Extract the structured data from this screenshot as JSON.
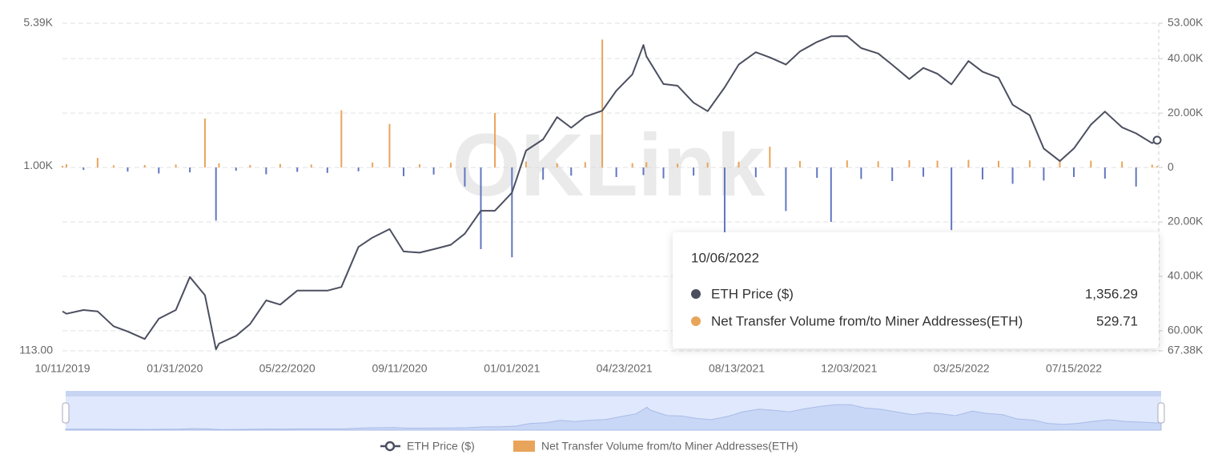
{
  "chart_data": {
    "type": "line-bar",
    "watermark": "OKLink",
    "xlim": [
      "10/11/2019",
      "10/06/2022"
    ],
    "xticks": [
      "10/11/2019",
      "01/31/2020",
      "05/22/2020",
      "09/11/2020",
      "01/01/2021",
      "04/23/2021",
      "08/13/2021",
      "12/03/2021",
      "03/25/2022",
      "07/15/2022"
    ],
    "yscale": "log",
    "ylim": [
      113,
      5390
    ],
    "yticks": [
      {
        "value": 113,
        "label": "113.00"
      },
      {
        "value": 1000,
        "label": "1.00K"
      },
      {
        "value": 5390,
        "label": "5.39K"
      }
    ],
    "y2lim": [
      -67380,
      53000
    ],
    "y2ticks": [
      {
        "value": 53000,
        "label": "53.00K"
      },
      {
        "value": 40000,
        "label": "40.00K"
      },
      {
        "value": 20000,
        "label": "20.00K"
      },
      0,
      {
        "value": -20000,
        "label": "20.00K"
      },
      {
        "value": -40000,
        "label": "40.00K"
      },
      {
        "value": -60000,
        "label": "60.00K"
      },
      {
        "value": -67380,
        "label": "67.38K"
      }
    ],
    "grid": true,
    "x": [
      "10/11/2019",
      "10/15/2019",
      "11/01/2019",
      "11/15/2019",
      "12/01/2019",
      "12/15/2019",
      "01/01/2020",
      "01/15/2020",
      "02/01/2020",
      "02/15/2020",
      "03/01/2020",
      "03/12/2020",
      "03/15/2020",
      "04/01/2020",
      "04/15/2020",
      "05/01/2020",
      "05/15/2020",
      "06/01/2020",
      "06/15/2020",
      "07/01/2020",
      "07/15/2020",
      "08/01/2020",
      "08/15/2020",
      "09/01/2020",
      "09/15/2020",
      "10/01/2020",
      "10/15/2020",
      "11/01/2020",
      "11/15/2020",
      "12/01/2020",
      "12/15/2020",
      "01/01/2021",
      "01/15/2021",
      "02/01/2021",
      "02/15/2021",
      "03/01/2021",
      "03/15/2021",
      "04/01/2021",
      "04/15/2021",
      "05/01/2021",
      "05/12/2021",
      "05/15/2021",
      "06/01/2021",
      "06/15/2021",
      "07/01/2021",
      "07/15/2021",
      "08/01/2021",
      "08/15/2021",
      "09/01/2021",
      "09/15/2021",
      "10/01/2021",
      "10/15/2021",
      "11/01/2021",
      "11/15/2021",
      "12/01/2021",
      "12/15/2021",
      "01/01/2022",
      "01/15/2022",
      "02/01/2022",
      "02/15/2022",
      "03/01/2022",
      "03/15/2022",
      "04/01/2022",
      "04/15/2022",
      "05/01/2022",
      "05/15/2022",
      "06/01/2022",
      "06/15/2022",
      "07/01/2022",
      "07/15/2022",
      "08/01/2022",
      "08/15/2022",
      "09/01/2022",
      "09/15/2022",
      "10/01/2022",
      "10/06/2022"
    ],
    "series": [
      {
        "name": "ETH Price ($)",
        "kind": "line",
        "axis": "y",
        "color": "#4b4f60",
        "values": [
          180,
          175,
          183,
          180,
          151,
          142,
          130,
          165,
          183,
          270,
          218,
          115,
          123,
          135,
          155,
          205,
          195,
          230,
          230,
          230,
          240,
          385,
          430,
          475,
          365,
          360,
          375,
          395,
          450,
          590,
          590,
          730,
          1200,
          1370,
          1780,
          1570,
          1790,
          1920,
          2430,
          2950,
          4170,
          3650,
          2630,
          2580,
          2110,
          1910,
          2530,
          3310,
          3830,
          3600,
          3310,
          3860,
          4320,
          4620,
          4630,
          4020,
          3770,
          3300,
          2790,
          3180,
          2970,
          2620,
          3450,
          3040,
          2830,
          2060,
          1820,
          1230,
          1060,
          1230,
          1630,
          1900,
          1580,
          1470,
          1310,
          1356.29
        ]
      },
      {
        "name": "Net Transfer Volume from/to Miner Addresses(ETH)",
        "kind": "bar",
        "axis": "y2",
        "color": "#e9a45b",
        "negative_color": "#6177c0",
        "values": [
          600,
          1200,
          -900,
          3500,
          800,
          -1500,
          900,
          -2200,
          1100,
          -1800,
          18000,
          -19500,
          1500,
          -1200,
          900,
          -2500,
          1300,
          -1600,
          1100,
          -2000,
          21000,
          -1400,
          1800,
          16000,
          -3200,
          1200,
          -2600,
          1700,
          -7000,
          -30000,
          20000,
          -33000,
          2200,
          -4500,
          1500,
          -3000,
          2000,
          47000,
          -3500,
          1600,
          -2800,
          1900,
          -4000,
          1400,
          -3000,
          1800,
          -24000,
          2100,
          -3600,
          7600,
          -16000,
          2400,
          -3800,
          -20000,
          2600,
          -4200,
          2300,
          -5000,
          2700,
          -3400,
          2500,
          -23000,
          2800,
          -4400,
          2400,
          -6000,
          2600,
          -4800,
          2800,
          -3500,
          2500,
          -4100,
          2200,
          -7000,
          1000,
          529.71
        ]
      }
    ],
    "tooltip": {
      "title": "10/06/2022",
      "values": [
        "1,356.29",
        "529.71"
      ]
    }
  }
}
